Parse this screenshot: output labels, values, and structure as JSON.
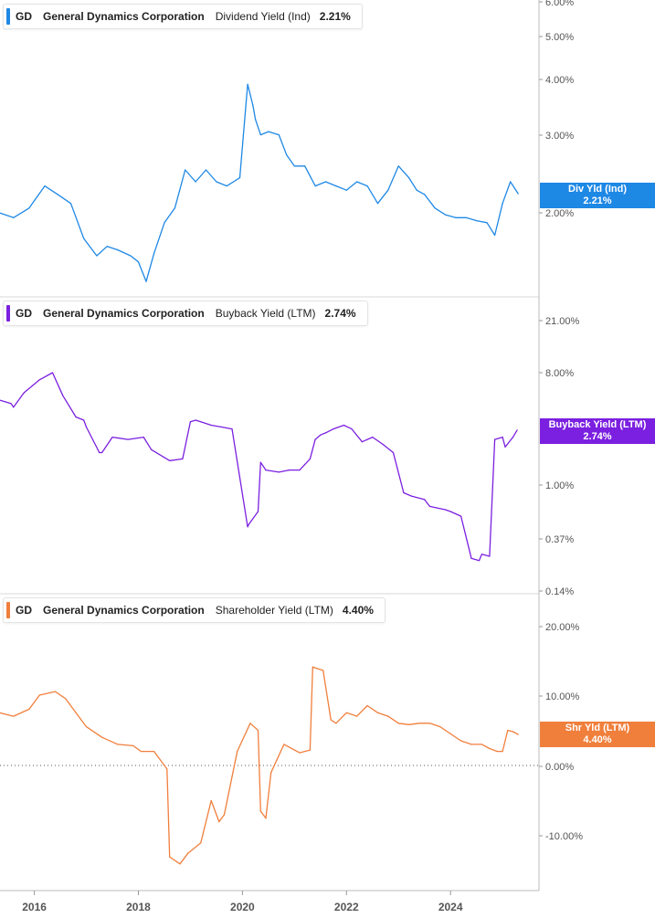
{
  "ticker": "GD",
  "company": "General Dynamics Corporation",
  "colors": {
    "dividend": "#1e88e5",
    "buyback": "#7b1fe0",
    "shareholder": "#f07f3c"
  },
  "x_axis": {
    "labels": [
      "2016",
      "2018",
      "2020",
      "2022",
      "2024"
    ]
  },
  "panels": [
    {
      "metric": "Dividend Yield (Ind)",
      "value": "2.21%",
      "tag_line1": "Div Yld (Ind)",
      "tag_line2": "2.21%",
      "color_key": "dividend"
    },
    {
      "metric": "Buyback Yield (LTM)",
      "value": "2.74%",
      "tag_line1": "Buyback Yield (LTM)",
      "tag_line2": "2.74%",
      "color_key": "buyback"
    },
    {
      "metric": "Shareholder Yield (LTM)",
      "value": "4.40%",
      "tag_line1": "Shr Yld (LTM)",
      "tag_line2": "4.40%",
      "color_key": "shareholder"
    }
  ],
  "chart_data": [
    {
      "type": "line",
      "scale": "log",
      "series": [
        {
          "name": "Dividend Yield (Ind)",
          "x": [
            2015.33,
            2015.6,
            2015.9,
            2016.2,
            2016.45,
            2016.7,
            2016.95,
            2017.2,
            2017.4,
            2017.6,
            2017.85,
            2018.0,
            2018.15,
            2018.3,
            2018.5,
            2018.7,
            2018.9,
            2019.1,
            2019.3,
            2019.5,
            2019.7,
            2019.95,
            2020.1,
            2020.2,
            2020.25,
            2020.35,
            2020.5,
            2020.7,
            2020.85,
            2021.0,
            2021.2,
            2021.4,
            2021.6,
            2021.8,
            2022.0,
            2022.2,
            2022.4,
            2022.6,
            2022.8,
            2023.0,
            2023.2,
            2023.35,
            2023.5,
            2023.7,
            2023.9,
            2024.1,
            2024.3,
            2024.5,
            2024.7,
            2024.85,
            2025.0,
            2025.15,
            2025.3
          ],
          "values": [
            2.0,
            1.95,
            2.05,
            2.3,
            2.2,
            2.1,
            1.75,
            1.6,
            1.68,
            1.65,
            1.6,
            1.55,
            1.4,
            1.62,
            1.9,
            2.05,
            2.5,
            2.35,
            2.5,
            2.35,
            2.3,
            2.4,
            3.9,
            3.5,
            3.25,
            3.0,
            3.05,
            3.0,
            2.7,
            2.55,
            2.55,
            2.3,
            2.35,
            2.3,
            2.25,
            2.35,
            2.3,
            2.1,
            2.25,
            2.55,
            2.4,
            2.25,
            2.2,
            2.05,
            1.98,
            1.95,
            1.95,
            1.92,
            1.9,
            1.78,
            2.1,
            2.35,
            2.21
          ]
        }
      ],
      "y_ticks": [
        "6.00%",
        "5.00%",
        "4.00%",
        "3.00%",
        "2.00%"
      ],
      "ylim": [
        1.3,
        6.0
      ]
    },
    {
      "type": "line",
      "scale": "log",
      "series": [
        {
          "name": "Buyback Yield (LTM)",
          "x": [
            2015.33,
            2015.55,
            2015.6,
            2015.8,
            2016.1,
            2016.35,
            2016.55,
            2016.8,
            2016.95,
            2017.0,
            2017.25,
            2017.3,
            2017.5,
            2017.8,
            2018.1,
            2018.25,
            2018.6,
            2018.85,
            2019.0,
            2019.1,
            2019.2,
            2019.4,
            2019.6,
            2019.8,
            2020.1,
            2020.12,
            2020.3,
            2020.35,
            2020.45,
            2020.7,
            2020.9,
            2021.1,
            2021.3,
            2021.4,
            2021.5,
            2021.6,
            2021.75,
            2021.95,
            2022.1,
            2022.3,
            2022.5,
            2022.7,
            2022.9,
            2023.1,
            2023.25,
            2023.5,
            2023.6,
            2023.9,
            2024.0,
            2024.2,
            2024.4,
            2024.55,
            2024.6,
            2024.75,
            2024.85,
            2025.0,
            2025.05,
            2025.2,
            2025.28
          ],
          "values": [
            4.8,
            4.5,
            4.2,
            5.5,
            7.0,
            8.0,
            5.2,
            3.5,
            3.3,
            2.9,
            1.8,
            1.8,
            2.4,
            2.3,
            2.4,
            1.9,
            1.55,
            1.6,
            3.2,
            3.3,
            3.2,
            3.0,
            2.9,
            2.8,
            0.45,
            0.47,
            0.6,
            1.5,
            1.3,
            1.25,
            1.3,
            1.3,
            1.6,
            2.3,
            2.5,
            2.6,
            2.8,
            3.0,
            2.8,
            2.2,
            2.4,
            2.1,
            1.8,
            0.85,
            0.8,
            0.75,
            0.66,
            0.62,
            0.6,
            0.55,
            0.25,
            0.24,
            0.27,
            0.26,
            2.3,
            2.4,
            2.0,
            2.4,
            2.74
          ]
        }
      ],
      "y_ticks": [
        "21.00%",
        "8.00%",
        "1.00%",
        "0.37%",
        "0.14%"
      ],
      "ylim": [
        0.14,
        24.0
      ]
    },
    {
      "type": "line",
      "scale": "linear",
      "series": [
        {
          "name": "Shareholder Yield (LTM)",
          "x": [
            2015.33,
            2015.6,
            2015.9,
            2016.1,
            2016.4,
            2016.6,
            2016.8,
            2017.0,
            2017.3,
            2017.6,
            2017.9,
            2018.05,
            2018.3,
            2018.55,
            2018.6,
            2018.8,
            2018.95,
            2019.2,
            2019.4,
            2019.55,
            2019.65,
            2019.9,
            2020.15,
            2020.3,
            2020.35,
            2020.45,
            2020.55,
            2020.8,
            2021.0,
            2021.1,
            2021.3,
            2021.35,
            2021.55,
            2021.7,
            2021.8,
            2022.0,
            2022.2,
            2022.4,
            2022.6,
            2022.8,
            2023.0,
            2023.2,
            2023.4,
            2023.6,
            2023.8,
            2024.0,
            2024.2,
            2024.4,
            2024.6,
            2024.75,
            2024.9,
            2025.0,
            2025.1,
            2025.2,
            2025.3
          ],
          "values": [
            7.5,
            7.0,
            8.0,
            10.0,
            10.5,
            9.5,
            7.5,
            5.5,
            4.0,
            3.0,
            2.8,
            2.0,
            2.0,
            -0.5,
            -13.0,
            -14.0,
            -12.5,
            -11.0,
            -5.0,
            -8.0,
            -7.0,
            2.0,
            6.0,
            5.0,
            -6.5,
            -7.5,
            -1.0,
            3.0,
            2.2,
            1.8,
            2.2,
            14.0,
            13.5,
            6.5,
            6.0,
            7.5,
            7.0,
            8.5,
            7.5,
            7.0,
            6.0,
            5.8,
            6.0,
            6.0,
            5.5,
            4.5,
            3.5,
            3.0,
            3.0,
            2.4,
            2.0,
            2.0,
            5.0,
            4.8,
            4.4
          ]
        }
      ],
      "y_ticks": [
        "20.00%",
        "10.00%",
        "0.00%",
        "-10.00%"
      ],
      "y_tick_values": [
        20,
        10,
        0,
        -10
      ],
      "zero_line": true,
      "ylim": [
        -16,
        21
      ]
    }
  ]
}
